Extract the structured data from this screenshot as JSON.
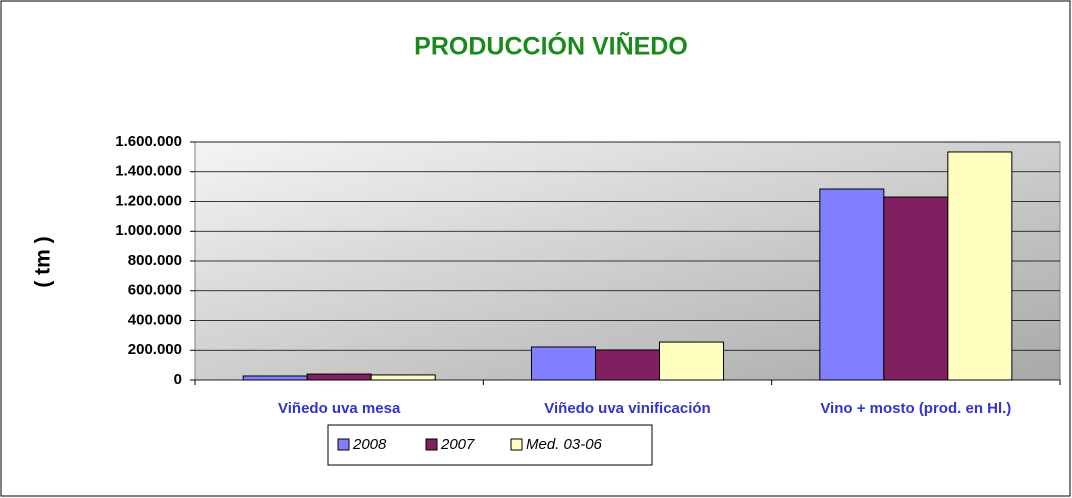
{
  "chart_data": {
    "type": "bar",
    "title": "PRODUCCIÓN  VIÑEDO",
    "y_label": "( tm )",
    "categories": [
      "Viñedo uva mesa",
      "Viñedo uva vinificación",
      "Vino + mosto (prod. en Hl.)"
    ],
    "series": [
      {
        "name": "2008",
        "color": "#8080ff",
        "values": [
          27000,
          222000,
          1284000
        ]
      },
      {
        "name": "2007",
        "color": "#802060",
        "values": [
          40000,
          202000,
          1230000
        ]
      },
      {
        "name": "Med. 03-06",
        "color": "#ffffc0",
        "values": [
          34000,
          255000,
          1533000
        ]
      }
    ],
    "ylim": [
      0,
      1600000
    ],
    "yticks": [
      0,
      {
        "value": 200000,
        "label": "200.000"
      },
      {
        "value": 400000,
        "label": "400.000"
      },
      {
        "value": 600000,
        "label": "600.000"
      },
      {
        "value": 800000,
        "label": "800.000"
      },
      {
        "value": 1000000,
        "label": "1.000.000"
      },
      {
        "value": 1200000,
        "label": "1.200.000"
      },
      {
        "value": 1400000,
        "label": "1.400.000"
      },
      {
        "value": 1600000,
        "label": "1.600.000"
      }
    ],
    "grid": true
  }
}
